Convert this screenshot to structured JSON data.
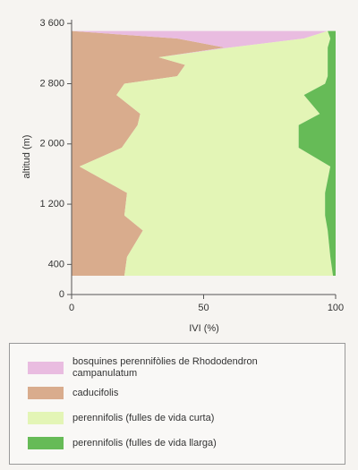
{
  "chart_data": {
    "type": "stacked-area-horizontal",
    "xlabel": "IVI (%)",
    "ylabel": "altitud (m)",
    "xlim": [
      0,
      100
    ],
    "xticks": [
      0,
      50,
      100
    ],
    "ylim": [
      0,
      3650
    ],
    "yticks": [
      0,
      400,
      {
        "value": 1200,
        "label": "1 200"
      },
      {
        "value": 2000,
        "label": "2 000"
      },
      {
        "value": 2800,
        "label": "2 800"
      },
      {
        "value": 3600,
        "label": "3 600"
      }
    ],
    "y": [
      250,
      500,
      850,
      1050,
      1350,
      1700,
      1950,
      2250,
      2400,
      2650,
      2800,
      2900,
      3050,
      3150,
      3280,
      3400,
      3500
    ],
    "series": [
      {
        "name": "bosquines perennifòlies de Rhododendron campanulatum",
        "color": "#e9bce0",
        "values": [
          0,
          0,
          0,
          0,
          0,
          0,
          0,
          0,
          0,
          0,
          0,
          0,
          0,
          0,
          2,
          48,
          97
        ]
      },
      {
        "name": "caducifolis",
        "color": "#d9ac8d",
        "values": [
          20,
          21,
          27,
          20,
          21,
          3,
          19,
          25,
          26,
          17,
          20,
          40,
          43,
          33,
          58,
          40,
          0
        ]
      },
      {
        "name": "perennifolis (fulles de vida curta)",
        "color": "#e3f5b6",
        "values": [
          79,
          77,
          70,
          76,
          75,
          95,
          67,
          61,
          68,
          71,
          76,
          57,
          54,
          64,
          37,
          10,
          0
        ]
      },
      {
        "name": "perennifolis (fulles de vida llarga)",
        "color": "#66bb57",
        "values": [
          1,
          2,
          3,
          4,
          4,
          2,
          14,
          14,
          6,
          12,
          4,
          3,
          3,
          3,
          3,
          2,
          3
        ]
      }
    ]
  }
}
